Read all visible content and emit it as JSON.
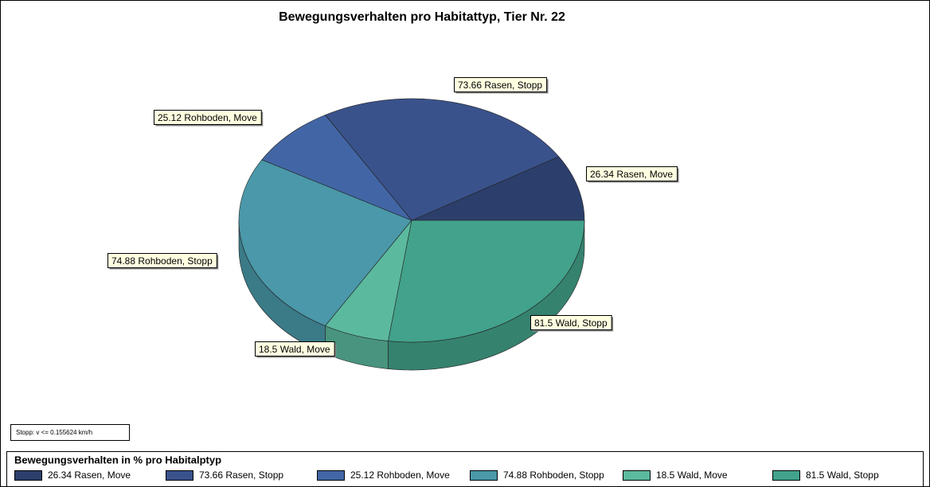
{
  "chart_data": {
    "type": "pie",
    "title": "Bewegungsverhalten pro Habitattyp, Tier Nr. 22",
    "categories": [
      "26.34 Rasen, Move",
      "73.66 Rasen, Stopp",
      "25.12 Rohboden, Move",
      "74.88 Rohboden, Stopp",
      "18.5 Wald, Move",
      "81.5 Wald, Stopp"
    ],
    "values": [
      26.34,
      73.66,
      25.12,
      74.88,
      18.5,
      81.5
    ],
    "value_labels": [
      "26.34 Rasen, Move",
      "73.66 Rasen, Stopp",
      "25.12 Rohboden, Move",
      "74.88 Rohboden, Stopp",
      "18.5 Wald, Move",
      "81.5 Wald, Stopp"
    ],
    "colors": [
      "#2c3f6c",
      "#3a528b",
      "#4266a5",
      "#4a98a9",
      "#5bb99e",
      "#42a28b"
    ],
    "legend_title": "Bewegungsverhalten in % pro Habitalptyp",
    "note": "Stopp: v <= 0.155624 km/h"
  }
}
